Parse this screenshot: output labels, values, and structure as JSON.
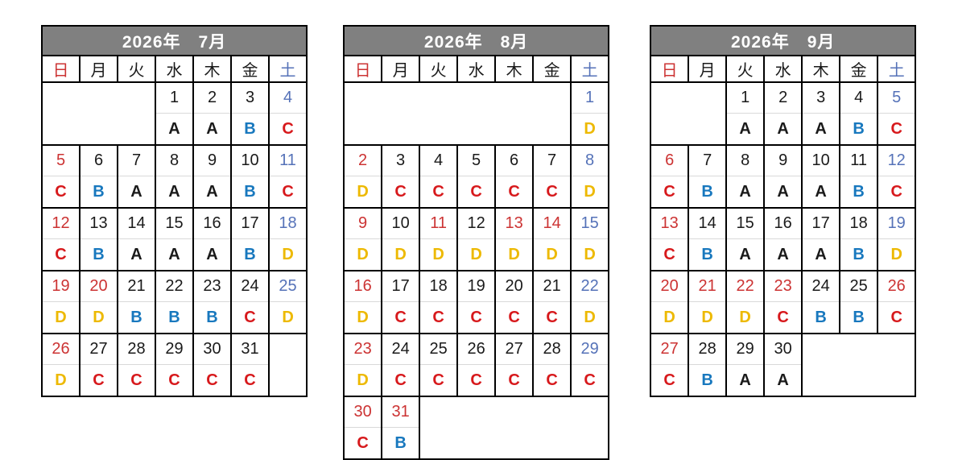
{
  "colors": {
    "title_bg": "#808080",
    "title_text": "#ffffff",
    "grid_border": "#000000",
    "row_divider": "#d9d9d9",
    "number_red": "#cc3333",
    "number_blue": "#5572b8",
    "number_black": "#1a1a1a",
    "shift_A": "#1a1a1a",
    "shift_B": "#1878be",
    "shift_C": "#d7191c",
    "shift_D": "#edb900"
  },
  "day_headers": [
    {
      "label": "日",
      "color": "red"
    },
    {
      "label": "月",
      "color": "black"
    },
    {
      "label": "火",
      "color": "black"
    },
    {
      "label": "水",
      "color": "black"
    },
    {
      "label": "木",
      "color": "black"
    },
    {
      "label": "金",
      "color": "black"
    },
    {
      "label": "土",
      "color": "blue"
    }
  ],
  "months": [
    {
      "id": "july",
      "title": "2026年　7月",
      "weeks": [
        [
          null,
          null,
          null,
          {
            "day": "1",
            "color": "black",
            "shift": "A"
          },
          {
            "day": "2",
            "color": "black",
            "shift": "A"
          },
          {
            "day": "3",
            "color": "black",
            "shift": "B"
          },
          {
            "day": "4",
            "color": "blue",
            "shift": "C"
          }
        ],
        [
          {
            "day": "5",
            "color": "red",
            "shift": "C"
          },
          {
            "day": "6",
            "color": "black",
            "shift": "B"
          },
          {
            "day": "7",
            "color": "black",
            "shift": "A"
          },
          {
            "day": "8",
            "color": "black",
            "shift": "A"
          },
          {
            "day": "9",
            "color": "black",
            "shift": "A"
          },
          {
            "day": "10",
            "color": "black",
            "shift": "B"
          },
          {
            "day": "11",
            "color": "blue",
            "shift": "C"
          }
        ],
        [
          {
            "day": "12",
            "color": "red",
            "shift": "C"
          },
          {
            "day": "13",
            "color": "black",
            "shift": "B"
          },
          {
            "day": "14",
            "color": "black",
            "shift": "A"
          },
          {
            "day": "15",
            "color": "black",
            "shift": "A"
          },
          {
            "day": "16",
            "color": "black",
            "shift": "A"
          },
          {
            "day": "17",
            "color": "black",
            "shift": "B"
          },
          {
            "day": "18",
            "color": "blue",
            "shift": "D"
          }
        ],
        [
          {
            "day": "19",
            "color": "red",
            "shift": "D"
          },
          {
            "day": "20",
            "color": "red",
            "shift": "D"
          },
          {
            "day": "21",
            "color": "black",
            "shift": "B"
          },
          {
            "day": "22",
            "color": "black",
            "shift": "B"
          },
          {
            "day": "23",
            "color": "black",
            "shift": "B"
          },
          {
            "day": "24",
            "color": "black",
            "shift": "C"
          },
          {
            "day": "25",
            "color": "blue",
            "shift": "D"
          }
        ],
        [
          {
            "day": "26",
            "color": "red",
            "shift": "D"
          },
          {
            "day": "27",
            "color": "black",
            "shift": "C"
          },
          {
            "day": "28",
            "color": "black",
            "shift": "C"
          },
          {
            "day": "29",
            "color": "black",
            "shift": "C"
          },
          {
            "day": "30",
            "color": "black",
            "shift": "C"
          },
          {
            "day": "31",
            "color": "black",
            "shift": "C"
          },
          null
        ]
      ]
    },
    {
      "id": "august",
      "title": "2026年　8月",
      "weeks": [
        [
          null,
          null,
          null,
          null,
          null,
          null,
          {
            "day": "1",
            "color": "blue",
            "shift": "D"
          }
        ],
        [
          {
            "day": "2",
            "color": "red",
            "shift": "D"
          },
          {
            "day": "3",
            "color": "black",
            "shift": "C"
          },
          {
            "day": "4",
            "color": "black",
            "shift": "C"
          },
          {
            "day": "5",
            "color": "black",
            "shift": "C"
          },
          {
            "day": "6",
            "color": "black",
            "shift": "C"
          },
          {
            "day": "7",
            "color": "black",
            "shift": "C"
          },
          {
            "day": "8",
            "color": "blue",
            "shift": "D"
          }
        ],
        [
          {
            "day": "9",
            "color": "red",
            "shift": "D"
          },
          {
            "day": "10",
            "color": "black",
            "shift": "D"
          },
          {
            "day": "11",
            "color": "red",
            "shift": "D"
          },
          {
            "day": "12",
            "color": "black",
            "shift": "D"
          },
          {
            "day": "13",
            "color": "red",
            "shift": "D"
          },
          {
            "day": "14",
            "color": "red",
            "shift": "D"
          },
          {
            "day": "15",
            "color": "blue",
            "shift": "D"
          }
        ],
        [
          {
            "day": "16",
            "color": "red",
            "shift": "D"
          },
          {
            "day": "17",
            "color": "black",
            "shift": "C"
          },
          {
            "day": "18",
            "color": "black",
            "shift": "C"
          },
          {
            "day": "19",
            "color": "black",
            "shift": "C"
          },
          {
            "day": "20",
            "color": "black",
            "shift": "C"
          },
          {
            "day": "21",
            "color": "black",
            "shift": "C"
          },
          {
            "day": "22",
            "color": "blue",
            "shift": "D"
          }
        ],
        [
          {
            "day": "23",
            "color": "red",
            "shift": "D"
          },
          {
            "day": "24",
            "color": "black",
            "shift": "C"
          },
          {
            "day": "25",
            "color": "black",
            "shift": "C"
          },
          {
            "day": "26",
            "color": "black",
            "shift": "C"
          },
          {
            "day": "27",
            "color": "black",
            "shift": "C"
          },
          {
            "day": "28",
            "color": "black",
            "shift": "C"
          },
          {
            "day": "29",
            "color": "blue",
            "shift": "C"
          }
        ],
        [
          {
            "day": "30",
            "color": "red",
            "shift": "C"
          },
          {
            "day": "31",
            "color": "red",
            "shift": "B"
          },
          null,
          null,
          null,
          null,
          null
        ]
      ]
    },
    {
      "id": "september",
      "title": "2026年　9月",
      "weeks": [
        [
          null,
          null,
          {
            "day": "1",
            "color": "black",
            "shift": "A"
          },
          {
            "day": "2",
            "color": "black",
            "shift": "A"
          },
          {
            "day": "3",
            "color": "black",
            "shift": "A"
          },
          {
            "day": "4",
            "color": "black",
            "shift": "B"
          },
          {
            "day": "5",
            "color": "blue",
            "shift": "C"
          }
        ],
        [
          {
            "day": "6",
            "color": "red",
            "shift": "C"
          },
          {
            "day": "7",
            "color": "black",
            "shift": "B"
          },
          {
            "day": "8",
            "color": "black",
            "shift": "A"
          },
          {
            "day": "9",
            "color": "black",
            "shift": "A"
          },
          {
            "day": "10",
            "color": "black",
            "shift": "A"
          },
          {
            "day": "11",
            "color": "black",
            "shift": "B"
          },
          {
            "day": "12",
            "color": "blue",
            "shift": "C"
          }
        ],
        [
          {
            "day": "13",
            "color": "red",
            "shift": "C"
          },
          {
            "day": "14",
            "color": "black",
            "shift": "B"
          },
          {
            "day": "15",
            "color": "black",
            "shift": "A"
          },
          {
            "day": "16",
            "color": "black",
            "shift": "A"
          },
          {
            "day": "17",
            "color": "black",
            "shift": "A"
          },
          {
            "day": "18",
            "color": "black",
            "shift": "B"
          },
          {
            "day": "19",
            "color": "blue",
            "shift": "D"
          }
        ],
        [
          {
            "day": "20",
            "color": "red",
            "shift": "D"
          },
          {
            "day": "21",
            "color": "red",
            "shift": "D"
          },
          {
            "day": "22",
            "color": "red",
            "shift": "D"
          },
          {
            "day": "23",
            "color": "red",
            "shift": "C"
          },
          {
            "day": "24",
            "color": "black",
            "shift": "B"
          },
          {
            "day": "25",
            "color": "black",
            "shift": "B"
          },
          {
            "day": "26",
            "color": "red",
            "shift": "C"
          }
        ],
        [
          {
            "day": "27",
            "color": "red",
            "shift": "C"
          },
          {
            "day": "28",
            "color": "black",
            "shift": "B"
          },
          {
            "day": "29",
            "color": "black",
            "shift": "A"
          },
          {
            "day": "30",
            "color": "black",
            "shift": "A"
          },
          null,
          null,
          null
        ]
      ]
    }
  ]
}
